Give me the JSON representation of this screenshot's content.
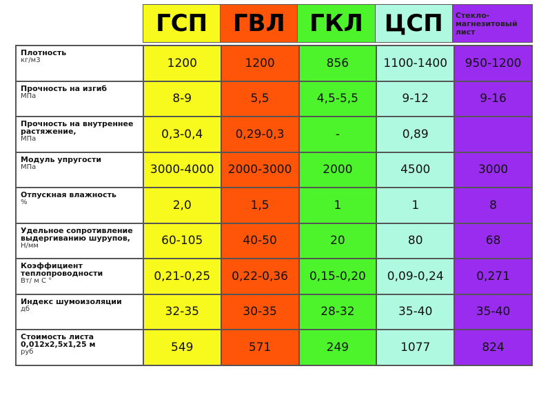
{
  "columns": [
    {
      "name": "ГСП",
      "color": "#f8fa1e"
    },
    {
      "name": "ГВЛ",
      "color": "#ff5508"
    },
    {
      "name": "ГКЛ",
      "color": "#4df42b"
    },
    {
      "name": "ЦСП",
      "color": "#aff9e0"
    },
    {
      "name": "Стекло-магнезитовый лист",
      "color": "#9a2cf0"
    }
  ],
  "rows": [
    {
      "label": "Плотность",
      "unit": "кг/м3",
      "values": [
        "1200",
        "1200",
        "856",
        "1100-1400",
        "950-1200"
      ]
    },
    {
      "label": "Прочность на изгиб",
      "unit": "МПа",
      "values": [
        "8-9",
        "5,5",
        "4,5-5,5",
        "9-12",
        "9-16"
      ]
    },
    {
      "label": "Прочность на внутреннее растяжение,",
      "unit": "МПа",
      "values": [
        "0,3-0,4",
        "0,29-0,3",
        "-",
        "0,89",
        ""
      ]
    },
    {
      "label": "Модуль упругости",
      "unit": "МПа",
      "values": [
        "3000-4000",
        "2000-3000",
        "2000",
        "4500",
        "3000"
      ]
    },
    {
      "label": "Отпускная влажность",
      "unit": "%",
      "values": [
        "2,0",
        "1,5",
        "1",
        "1",
        "8"
      ]
    },
    {
      "label": "Удельное сопротивление выдергиванию шурупов,",
      "unit": "Н/мм",
      "values": [
        "60-105",
        "40-50",
        "20",
        "80",
        "68"
      ]
    },
    {
      "label": "Коэффициент теплопроводности",
      "unit": "Вт/ м С °",
      "values": [
        "0,21-0,25",
        "0,22-0,36",
        "0,15-0,20",
        "0,09-0,24",
        "0,271"
      ]
    },
    {
      "label": "Индекс шумоизоляции",
      "unit": "дб",
      "values": [
        "32-35",
        "30-35",
        "28-32",
        "35-40",
        "35-40"
      ]
    },
    {
      "label": "Стоимость листа 0,012х2,5х1,25 м",
      "unit": "руб",
      "values": [
        "549",
        "571",
        "249",
        "1077",
        "824"
      ]
    }
  ]
}
